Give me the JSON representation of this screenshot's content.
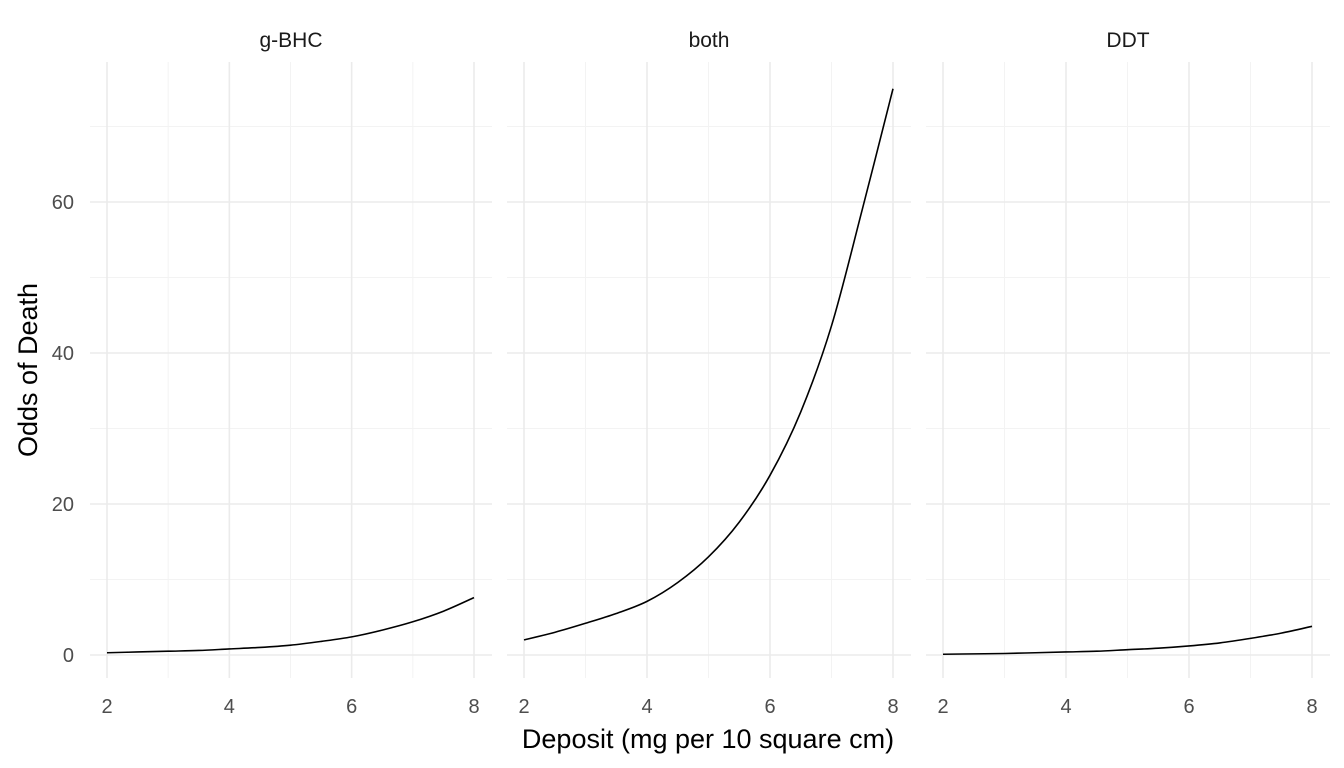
{
  "chart_data": {
    "type": "line",
    "xlabel": "Deposit (mg per 10 square cm)",
    "ylabel": "Odds of Death",
    "xlim": [
      2,
      8
    ],
    "ylim": [
      0,
      75
    ],
    "x_ticks": [
      "2",
      "4",
      "6",
      "8"
    ],
    "y_ticks": [
      "0",
      "20",
      "40",
      "60"
    ],
    "grid": true,
    "x": [
      2,
      2.5,
      3,
      3.5,
      4,
      4.5,
      5,
      5.5,
      6,
      6.5,
      7,
      7.5,
      8
    ],
    "panels": [
      {
        "name": "g-BHC",
        "values": [
          0.3,
          0.4,
          0.5,
          0.6,
          0.8,
          1.0,
          1.3,
          1.8,
          2.4,
          3.3,
          4.4,
          5.8,
          7.6
        ]
      },
      {
        "name": "both",
        "values": [
          2.0,
          3.0,
          4.2,
          5.5,
          7.1,
          9.6,
          13.0,
          17.6,
          23.8,
          32.2,
          43.6,
          59.0,
          75.0
        ]
      },
      {
        "name": "DDT",
        "values": [
          0.1,
          0.15,
          0.2,
          0.3,
          0.4,
          0.5,
          0.7,
          0.9,
          1.2,
          1.6,
          2.2,
          2.9,
          3.8
        ]
      }
    ]
  }
}
